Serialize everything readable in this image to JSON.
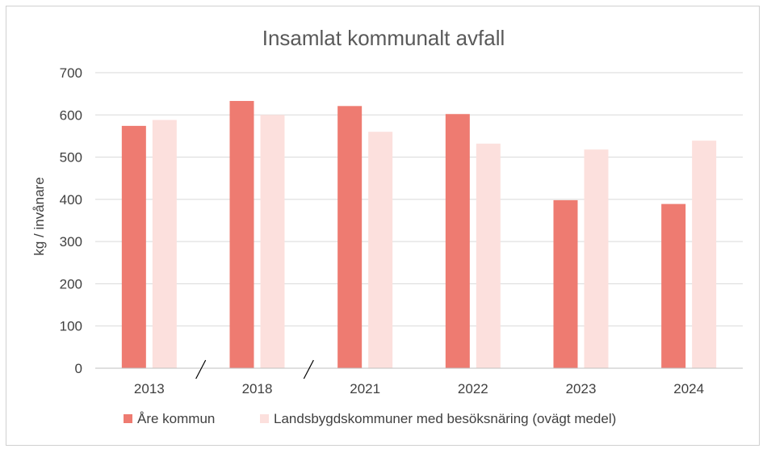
{
  "chart_data": {
    "type": "bar",
    "title": "Insamlat kommunalt avfall",
    "xlabel": "",
    "ylabel": "kg / invånare",
    "ylim": [
      0,
      700
    ],
    "yticks": [
      0,
      100,
      200,
      300,
      400,
      500,
      600,
      700
    ],
    "categories": [
      "2013",
      "2018",
      "2021",
      "2022",
      "2023",
      "2024"
    ],
    "series": [
      {
        "name": "Åre kommun",
        "color": "#EE7B71",
        "values": [
          574,
          633,
          621,
          602,
          398,
          389
        ]
      },
      {
        "name": "Landsbygdskommuner med besöksnäring (ovägt medel)",
        "color": "#FCE0DD",
        "values": [
          588,
          600,
          560,
          532,
          518,
          539
        ]
      }
    ],
    "grid": true,
    "legend": "bottom",
    "axis_breaks_after": [
      "2013",
      "2018"
    ]
  }
}
